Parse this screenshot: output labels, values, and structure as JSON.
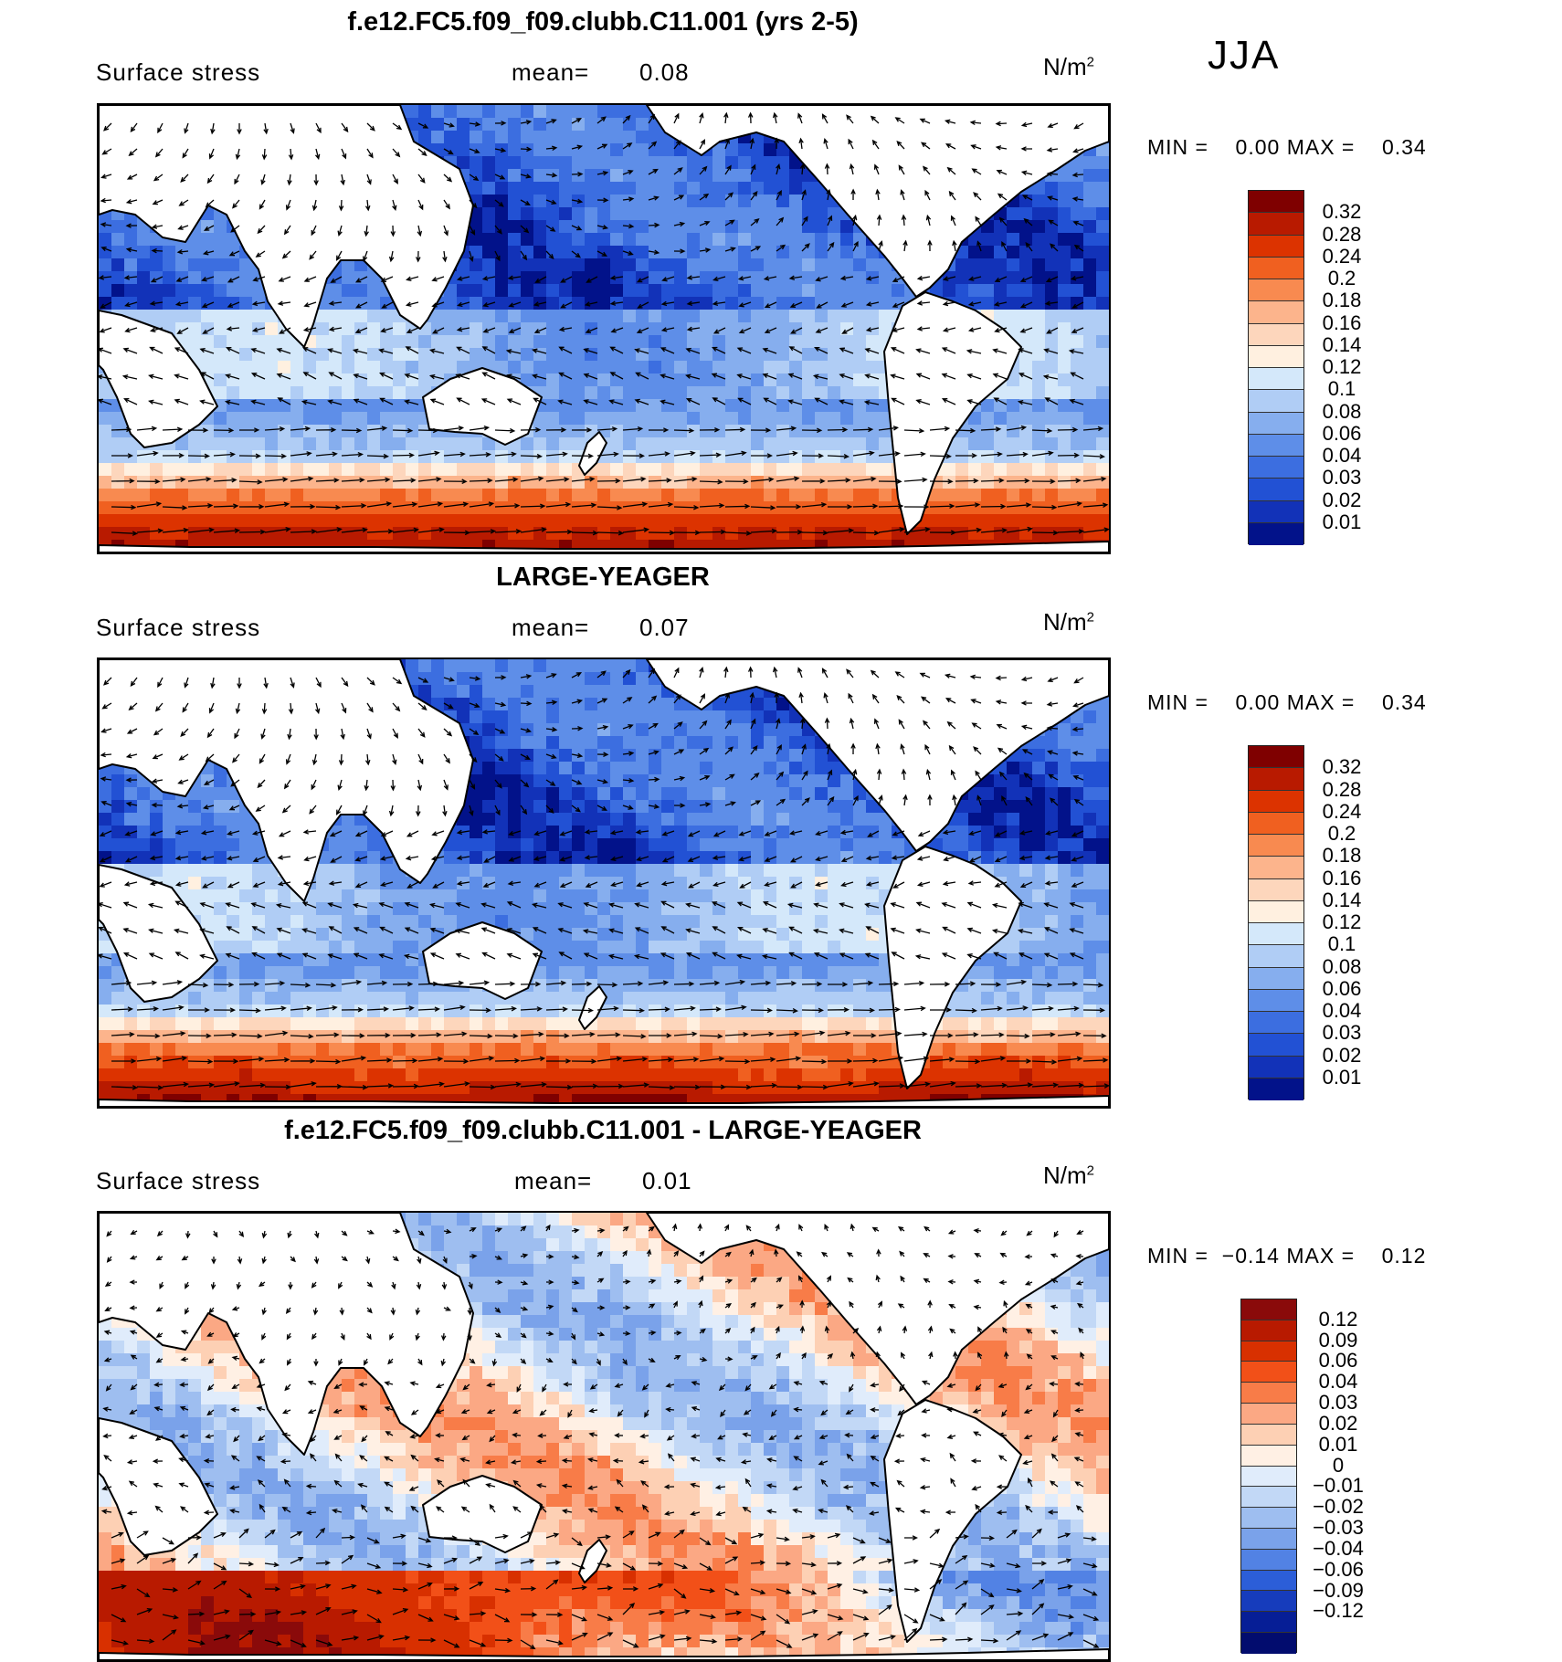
{
  "season": "JJA",
  "panels": [
    {
      "title": "f.e12.FC5.f09_f09.clubb.C11.001 (yrs 2-5)",
      "variable": "Surface stress",
      "mean_label": "mean=",
      "mean_value": "0.08",
      "units_base": "N/m",
      "units_exp": "2",
      "minmax": {
        "min_label": "MIN =",
        "min_value": "0.00",
        "max_label": "MAX =",
        "max_value": "0.34"
      },
      "colorbar": {
        "colors": [
          "#7f0000",
          "#b81a00",
          "#dc3300",
          "#f06020",
          "#f88a50",
          "#fcb48c",
          "#fdd6bc",
          "#fff0e0",
          "#d4e8fa",
          "#b0cdf5",
          "#86aeee",
          "#5e8ee8",
          "#3c6ee0",
          "#2251d4",
          "#1232b8",
          "#02128a"
        ],
        "labels": [
          "0.32",
          "0.28",
          "0.24",
          "0.2",
          "0.18",
          "0.16",
          "0.14",
          "0.12",
          "0.1",
          "0.08",
          "0.06",
          "0.04",
          "0.03",
          "0.02",
          "0.01"
        ]
      }
    },
    {
      "title": "LARGE-YEAGER",
      "variable": "Surface stress",
      "mean_label": "mean=",
      "mean_value": "0.07",
      "units_base": "N/m",
      "units_exp": "2",
      "minmax": {
        "min_label": "MIN =",
        "min_value": "0.00",
        "max_label": "MAX =",
        "max_value": "0.34"
      },
      "colorbar": {
        "colors": [
          "#7f0000",
          "#b81a00",
          "#dc3300",
          "#f06020",
          "#f88a50",
          "#fcb48c",
          "#fdd6bc",
          "#fff0e0",
          "#d4e8fa",
          "#b0cdf5",
          "#86aeee",
          "#5e8ee8",
          "#3c6ee0",
          "#2251d4",
          "#1232b8",
          "#02128a"
        ],
        "labels": [
          "0.32",
          "0.28",
          "0.24",
          "0.2",
          "0.18",
          "0.16",
          "0.14",
          "0.12",
          "0.1",
          "0.08",
          "0.06",
          "0.04",
          "0.03",
          "0.02",
          "0.01"
        ]
      }
    },
    {
      "title": "f.e12.FC5.f09_f09.clubb.C11.001 - LARGE-YEAGER",
      "variable": "Surface stress",
      "mean_label": "mean=",
      "mean_value": "0.01",
      "units_base": "N/m",
      "units_exp": "2",
      "minmax": {
        "min_label": "MIN =",
        "min_value": "−0.14",
        "max_label": "MAX =",
        "max_value": "0.12"
      },
      "colorbar": {
        "colors": [
          "#8a0a0a",
          "#b81a00",
          "#d83000",
          "#f25018",
          "#f87c48",
          "#fba884",
          "#fdd0b4",
          "#fff0e4",
          "#e0ecfb",
          "#c2d8f6",
          "#9ebef0",
          "#7aa2ea",
          "#5282e4",
          "#2c5ed8",
          "#163cbc",
          "#061e96",
          "#020c6e"
        ],
        "labels": [
          "0.12",
          "0.09",
          "0.06",
          "0.04",
          "0.03",
          "0.02",
          "0.01",
          "0",
          "−0.01",
          "−0.02",
          "−0.03",
          "−0.04",
          "−0.06",
          "−0.09",
          "−0.12"
        ]
      }
    }
  ],
  "chart_data": [
    {
      "type": "heatmap",
      "title": "f.e12.FC5.f09_f09.clubb.C11.001 (yrs 2-5)",
      "variable": "Surface stress",
      "units": "N/m^2",
      "season": "JJA",
      "mean": 0.08,
      "min": 0.0,
      "max": 0.34,
      "contour_levels": [
        0.01,
        0.02,
        0.03,
        0.04,
        0.06,
        0.08,
        0.1,
        0.12,
        0.14,
        0.16,
        0.18,
        0.2,
        0.24,
        0.28,
        0.32
      ],
      "overlay": "wind stress vectors"
    },
    {
      "type": "heatmap",
      "title": "LARGE-YEAGER",
      "variable": "Surface stress",
      "units": "N/m^2",
      "season": "JJA",
      "mean": 0.07,
      "min": 0.0,
      "max": 0.34,
      "contour_levels": [
        0.01,
        0.02,
        0.03,
        0.04,
        0.06,
        0.08,
        0.1,
        0.12,
        0.14,
        0.16,
        0.18,
        0.2,
        0.24,
        0.28,
        0.32
      ],
      "overlay": "wind stress vectors"
    },
    {
      "type": "heatmap",
      "title": "f.e12.FC5.f09_f09.clubb.C11.001 - LARGE-YEAGER",
      "variable": "Surface stress",
      "units": "N/m^2",
      "season": "JJA",
      "mean": 0.01,
      "min": -0.14,
      "max": 0.12,
      "contour_levels": [
        -0.12,
        -0.09,
        -0.06,
        -0.04,
        -0.03,
        -0.02,
        -0.01,
        0,
        0.01,
        0.02,
        0.03,
        0.04,
        0.06,
        0.09,
        0.12
      ],
      "overlay": "wind stress difference vectors"
    }
  ]
}
